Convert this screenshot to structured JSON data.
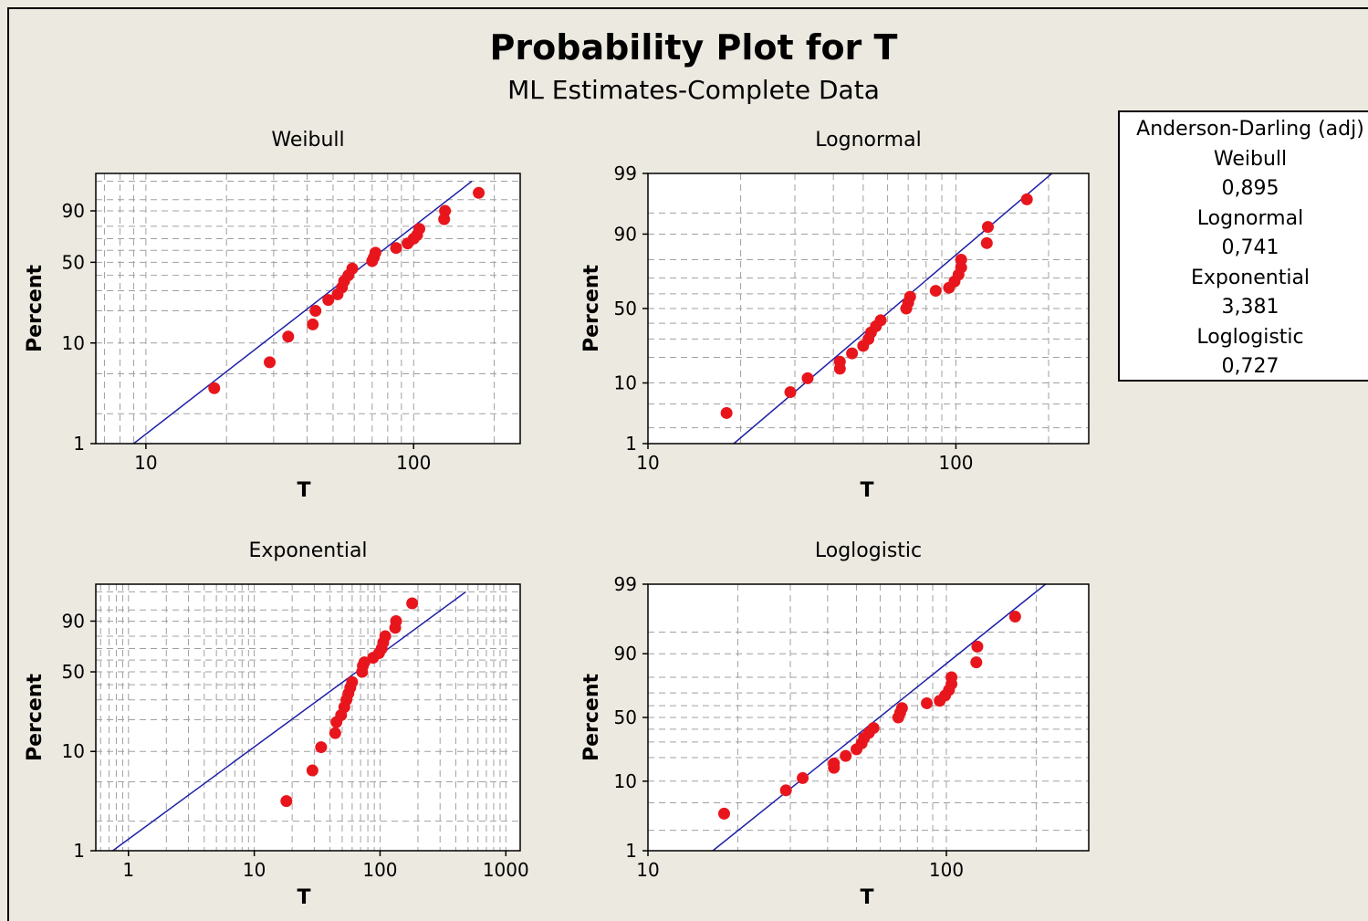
{
  "title": "Probability Plot for T",
  "subtitle": "ML Estimates-Complete Data",
  "legend": {
    "heading": "Anderson-Darling (adj)",
    "entries": [
      {
        "name": "Weibull",
        "value": "0,895"
      },
      {
        "name": "Lognormal",
        "value": "0,741"
      },
      {
        "name": "Exponential",
        "value": "3,381"
      },
      {
        "name": "Loglogistic",
        "value": "0,727"
      }
    ]
  },
  "colors": {
    "points": "#e8161c",
    "fit_line": "#1f1fa8",
    "grid": "#a0a0a0",
    "background": "#ece9e0"
  },
  "chart_data": [
    {
      "type": "scatter",
      "title": "Weibull",
      "xlabel": "T",
      "ylabel": "Percent",
      "xscale": "log",
      "xlim": [
        6.5,
        250
      ],
      "xticks": [
        10,
        100
      ],
      "xtick_labels": [
        "10",
        "100"
      ],
      "yticks": [
        1,
        10,
        50,
        90
      ],
      "ytick_labels": [
        "1",
        "10",
        "50",
        "90"
      ],
      "grid": true,
      "points": [
        [
          18,
          3.6
        ],
        [
          29,
          6.5
        ],
        [
          34,
          11.5
        ],
        [
          42,
          15
        ],
        [
          43,
          20
        ],
        [
          48,
          25
        ],
        [
          52,
          28
        ],
        [
          54,
          32
        ],
        [
          55,
          36
        ],
        [
          57,
          40
        ],
        [
          59,
          45
        ],
        [
          70,
          51
        ],
        [
          71,
          54
        ],
        [
          72,
          58
        ],
        [
          86,
          62
        ],
        [
          95,
          66
        ],
        [
          100,
          70
        ],
        [
          103,
          73
        ],
        [
          105,
          78
        ],
        [
          130,
          85
        ],
        [
          131,
          90
        ],
        [
          175,
          97
        ]
      ],
      "fit": [
        [
          9,
          1
        ],
        [
          165,
          99
        ]
      ]
    },
    {
      "type": "scatter",
      "title": "Lognormal",
      "xlabel": "T",
      "ylabel": "Percent",
      "xscale": "log",
      "xlim": [
        10,
        270
      ],
      "xticks": [
        10,
        100
      ],
      "xtick_labels": [
        "10",
        "100"
      ],
      "yticks": [
        1,
        10,
        50,
        90,
        99
      ],
      "ytick_labels": [
        "1",
        "10",
        "50",
        "90",
        "99"
      ],
      "grid": true,
      "points": [
        [
          18,
          3.6
        ],
        [
          29,
          7.5
        ],
        [
          33,
          11.5
        ],
        [
          42,
          15
        ],
        [
          42,
          18
        ],
        [
          46,
          22
        ],
        [
          50,
          26
        ],
        [
          52,
          30
        ],
        [
          53,
          34
        ],
        [
          55,
          38
        ],
        [
          57,
          42
        ],
        [
          69,
          50
        ],
        [
          70,
          54
        ],
        [
          71,
          58
        ],
        [
          86,
          62
        ],
        [
          95,
          64
        ],
        [
          99,
          68
        ],
        [
          102,
          72
        ],
        [
          104,
          76
        ],
        [
          104,
          80
        ],
        [
          126,
          87
        ],
        [
          127,
          92
        ],
        [
          170,
          97
        ]
      ],
      "fit": [
        [
          19,
          1
        ],
        [
          205,
          99
        ]
      ]
    },
    {
      "type": "scatter",
      "title": "Exponential",
      "xlabel": "T",
      "ylabel": "Percent",
      "xscale": "log",
      "xlim": [
        0.55,
        1300
      ],
      "xticks": [
        1,
        10,
        100,
        1000
      ],
      "xtick_labels": [
        "1",
        "10",
        "100",
        "1000"
      ],
      "yticks": [
        1,
        10,
        50,
        90
      ],
      "ytick_labels": [
        "1",
        "10",
        "50",
        "90"
      ],
      "grid": true,
      "points": [
        [
          18,
          3.2
        ],
        [
          29,
          6.5
        ],
        [
          34,
          11
        ],
        [
          44,
          15
        ],
        [
          45,
          19
        ],
        [
          49,
          22
        ],
        [
          52,
          26
        ],
        [
          54,
          30
        ],
        [
          56,
          34
        ],
        [
          58,
          38
        ],
        [
          60,
          42
        ],
        [
          72,
          50
        ],
        [
          73,
          55
        ],
        [
          75,
          58
        ],
        [
          88,
          62
        ],
        [
          98,
          66
        ],
        [
          103,
          70
        ],
        [
          106,
          75
        ],
        [
          110,
          80
        ],
        [
          132,
          86
        ],
        [
          134,
          90
        ],
        [
          180,
          97
        ]
      ],
      "fit": [
        [
          0.75,
          1
        ],
        [
          480,
          99
        ]
      ]
    },
    {
      "type": "scatter",
      "title": "Loglogistic",
      "xlabel": "T",
      "ylabel": "Percent",
      "xscale": "log",
      "xlim": [
        10,
        300
      ],
      "xticks": [
        10,
        100
      ],
      "xtick_labels": [
        "10",
        "100"
      ],
      "yticks": [
        1,
        10,
        50,
        90,
        99
      ],
      "ytick_labels": [
        "1",
        "10",
        "50",
        "90",
        "99"
      ],
      "grid": true,
      "points": [
        [
          18,
          3.5
        ],
        [
          29,
          7.5
        ],
        [
          33,
          11
        ],
        [
          42,
          15
        ],
        [
          42,
          17
        ],
        [
          46,
          21
        ],
        [
          50,
          25
        ],
        [
          52,
          29
        ],
        [
          53,
          33
        ],
        [
          55,
          37
        ],
        [
          57,
          41
        ],
        [
          69,
          50
        ],
        [
          70,
          54
        ],
        [
          71,
          58
        ],
        [
          86,
          62
        ],
        [
          95,
          64
        ],
        [
          99,
          68
        ],
        [
          102,
          72
        ],
        [
          104,
          76
        ],
        [
          104,
          80
        ],
        [
          126,
          87
        ],
        [
          127,
          92
        ],
        [
          170,
          97
        ]
      ],
      "fit": [
        [
          16.5,
          1
        ],
        [
          215,
          99
        ]
      ]
    }
  ]
}
